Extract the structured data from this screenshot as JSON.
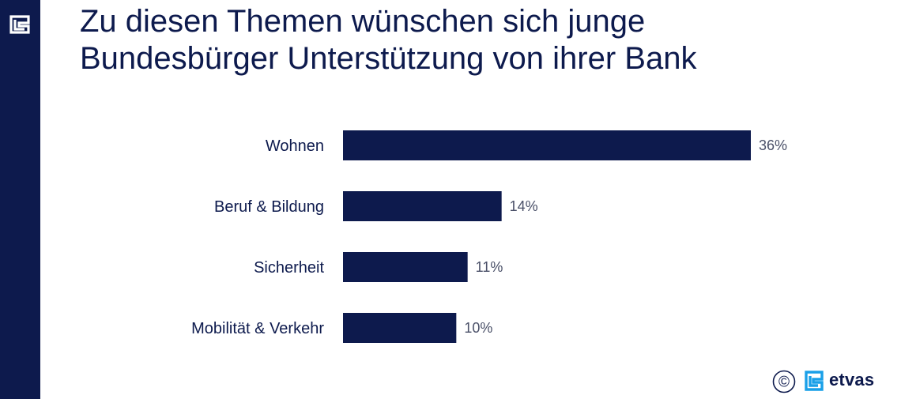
{
  "header": {
    "title_line1": "Zu diesen Themen wünschen sich junge",
    "title_line2": "Bundesbürger Unterstützung von ihrer Bank"
  },
  "footer": {
    "copyright_symbol": "©",
    "brand_name": "etvas",
    "brand_icon": "etvas-logo-icon"
  },
  "colors": {
    "bar": "#0d1a4d",
    "sidebar": "#0d1a4d",
    "brand_accent": "#1aa0e8"
  },
  "chart_data": {
    "type": "bar",
    "orientation": "horizontal",
    "categories": [
      "Wohnen",
      "Beruf & Bildung",
      "Sicherheit",
      "Mobilität & Verkehr"
    ],
    "values": [
      36,
      14,
      11,
      10
    ],
    "value_labels": [
      "36%",
      "14%",
      "11%",
      "10%"
    ],
    "unit": "%",
    "xlim": [
      0,
      36
    ],
    "grid": false,
    "legend": "none"
  }
}
